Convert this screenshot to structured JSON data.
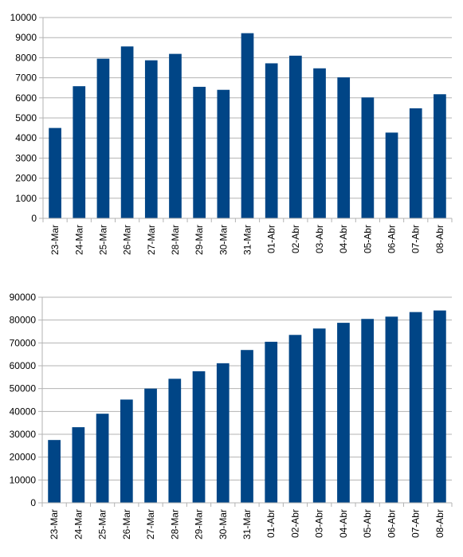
{
  "colors": {
    "bar": "#004586",
    "grid": "#b3b3b3",
    "axis": "#000000",
    "background": "#ffffff"
  },
  "chart_data": [
    {
      "type": "bar",
      "title": "",
      "xlabel": "",
      "ylabel": "",
      "grid": true,
      "legend": "none",
      "ylim": [
        0,
        10000
      ],
      "yticks": [
        "0",
        "1000",
        "2000",
        "3000",
        "4000",
        "5000",
        "6000",
        "7000",
        "8000",
        "9000",
        "10000"
      ],
      "categories": [
        "23-Mar",
        "24-Mar",
        "25-Mar",
        "26-Mar",
        "27-Mar",
        "28-Mar",
        "29-Mar",
        "30-Mar",
        "31-Mar",
        "01-Abr",
        "02-Abr",
        "03-Abr",
        "04-Abr",
        "05-Abr",
        "06-Abr",
        "07-Abr",
        "08-Abr"
      ],
      "values": [
        4500,
        6580,
        7950,
        8560,
        7870,
        8190,
        6550,
        6400,
        9220,
        7720,
        8100,
        7470,
        7020,
        6020,
        4270,
        5480,
        6180
      ]
    },
    {
      "type": "bar",
      "title": "",
      "xlabel": "",
      "ylabel": "",
      "grid": true,
      "legend": "none",
      "ylim": [
        0,
        90000
      ],
      "yticks": [
        "0",
        "10000",
        "20000",
        "30000",
        "40000",
        "50000",
        "60000",
        "70000",
        "80000",
        "90000"
      ],
      "categories": [
        "23-Mar",
        "24-Mar",
        "25-Mar",
        "26-Mar",
        "27-Mar",
        "28-Mar",
        "29-Mar",
        "30-Mar",
        "31-Mar",
        "01-Abr",
        "02-Abr",
        "03-Abr",
        "04-Abr",
        "05-Abr",
        "06-Abr",
        "07-Abr",
        "08-Abr"
      ],
      "values": [
        27500,
        33100,
        39000,
        45200,
        50000,
        54300,
        57600,
        61100,
        66900,
        70500,
        73500,
        76300,
        78800,
        80500,
        81500,
        83500,
        84200
      ]
    }
  ]
}
